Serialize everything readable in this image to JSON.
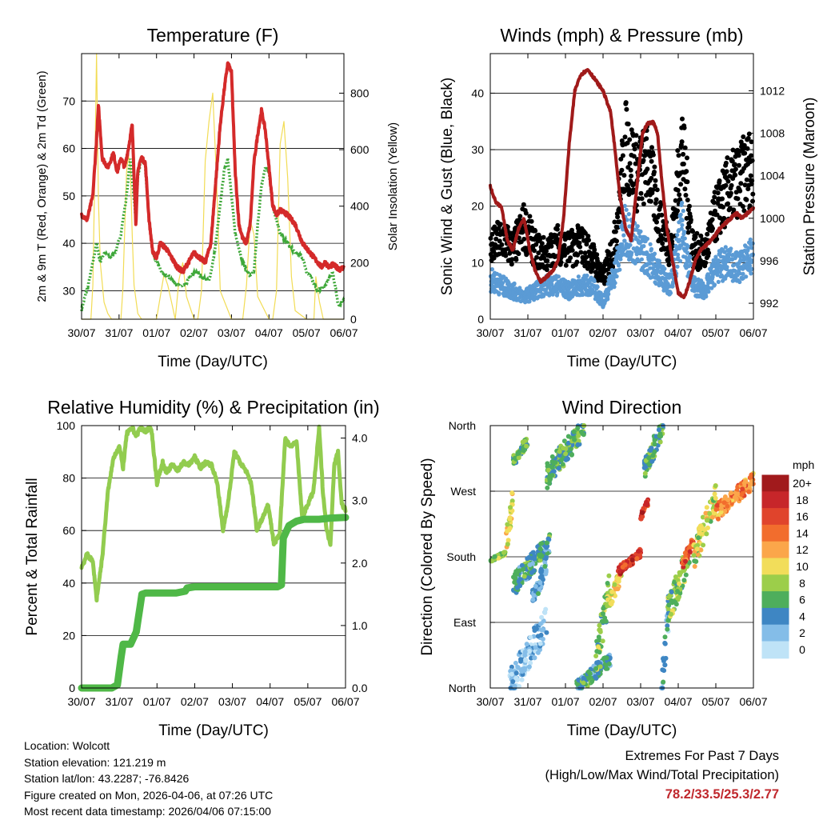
{
  "chart_data": [
    {
      "type": "line",
      "title": "Temperature (F)",
      "xlabel": "Time (Day/UTC)",
      "ylabel": "2m & 9m T (Red, Orange) & 2m Td (Green)",
      "ylabel_right": "Solar Insolation (Yellow)",
      "x_ticks": [
        "30/07",
        "31/07",
        "01/07",
        "02/07",
        "03/07",
        "04/07",
        "05/07",
        "06/07"
      ],
      "xlim": [
        0,
        7
      ],
      "ylim": [
        24,
        80
      ],
      "y_ticks": [
        30,
        40,
        50,
        60,
        70
      ],
      "ylim_right": [
        0,
        940
      ],
      "y_ticks_right": [
        0,
        200,
        400,
        600,
        800
      ],
      "series": [
        {
          "name": "2m T",
          "color": "#d42a2a",
          "axis": "left",
          "x": [
            0,
            0.15,
            0.3,
            0.4,
            0.45,
            0.55,
            0.7,
            0.85,
            0.95,
            1.05,
            1.15,
            1.25,
            1.35,
            1.45,
            1.5,
            1.55,
            1.6,
            1.7,
            1.8,
            1.9,
            2.0,
            2.1,
            2.25,
            2.4,
            2.55,
            2.7,
            2.85,
            3.0,
            3.15,
            3.3,
            3.45,
            3.5,
            3.6,
            3.7,
            3.8,
            3.9,
            4.0,
            4.1,
            4.2,
            4.3,
            4.4,
            4.5,
            4.6,
            4.7,
            4.8,
            4.9,
            5.0,
            5.1,
            5.2,
            5.3,
            5.5,
            5.7,
            5.9,
            6.0,
            6.1,
            6.2,
            6.3,
            6.4,
            6.5,
            6.6,
            6.7,
            6.8,
            6.9,
            7.0
          ],
          "y": [
            46,
            45,
            50,
            62,
            69,
            58,
            56,
            59,
            55,
            58,
            56,
            60,
            65,
            44,
            55,
            57,
            58,
            57,
            45,
            38,
            37,
            40,
            39,
            37,
            35,
            34,
            36,
            38,
            37,
            36,
            40,
            45,
            55,
            65,
            72,
            78,
            76,
            55,
            44,
            41,
            40,
            44,
            57,
            63,
            68,
            64,
            56,
            48,
            46,
            47,
            46,
            44,
            40,
            39,
            38,
            37,
            36,
            35,
            36,
            35,
            35.5,
            35,
            34.5,
            35
          ]
        },
        {
          "name": "2m Td",
          "color": "#3fa83a",
          "axis": "left",
          "x": [
            0,
            0.2,
            0.4,
            0.5,
            0.6,
            0.75,
            0.9,
            1.05,
            1.2,
            1.3,
            1.45,
            1.5,
            1.6,
            1.7,
            1.8,
            1.9,
            2.0,
            2.15,
            2.3,
            2.45,
            2.6,
            2.75,
            2.9,
            3.05,
            3.2,
            3.4,
            3.55,
            3.7,
            3.8,
            3.9,
            4.0,
            4.1,
            4.3,
            4.5,
            4.6,
            4.7,
            4.8,
            4.9,
            5.0,
            5.1,
            5.3,
            5.5,
            5.7,
            5.9,
            6.0,
            6.1,
            6.3,
            6.5,
            6.7,
            6.85,
            7.0
          ],
          "y": [
            26,
            32,
            40,
            36,
            38,
            37,
            38,
            42,
            50,
            58,
            45,
            54,
            58,
            56,
            45,
            38,
            36,
            34,
            33,
            32,
            31,
            31,
            33,
            34,
            33,
            32,
            38,
            48,
            55,
            58,
            50,
            42,
            36,
            33,
            34,
            44,
            52,
            56,
            55,
            48,
            42,
            40,
            38,
            37,
            34,
            33,
            30,
            31,
            34,
            27,
            28
          ]
        },
        {
          "name": "Solar Insolation",
          "color": "#f2dc55",
          "axis": "right",
          "x": [
            0.0,
            0.25,
            0.3,
            0.35,
            0.4,
            0.45,
            0.5,
            0.6,
            0.7,
            0.8,
            0.9,
            1.05,
            1.1,
            1.2,
            1.25,
            1.3,
            1.35,
            1.4,
            1.5,
            1.6,
            1.7,
            1.8,
            2.0,
            2.1,
            2.2,
            2.3,
            2.4,
            2.5,
            2.6,
            2.7,
            2.8,
            3.0,
            3.1,
            3.2,
            3.3,
            3.4,
            3.5,
            3.6,
            3.7,
            4.0,
            4.2,
            4.3,
            4.4,
            4.5,
            4.6,
            4.7,
            5.0,
            5.1,
            5.2,
            5.3,
            5.4,
            5.5,
            5.6,
            5.7,
            6.0,
            6.2,
            6.25,
            6.3,
            6.35,
            6.4,
            6.45,
            7.0
          ],
          "y": [
            0,
            0,
            120,
            500,
            940,
            420,
            200,
            60,
            20,
            0,
            0,
            0,
            100,
            520,
            580,
            540,
            300,
            120,
            20,
            0,
            0,
            0,
            0,
            80,
            160,
            120,
            60,
            0,
            140,
            200,
            80,
            0,
            0,
            100,
            560,
            700,
            800,
            500,
            100,
            0,
            0,
            0,
            120,
            350,
            300,
            80,
            0,
            0,
            100,
            620,
            700,
            500,
            150,
            30,
            0,
            0,
            150,
            100,
            60,
            30,
            0,
            0
          ]
        }
      ]
    },
    {
      "type": "line",
      "title": "Winds (mph) & Pressure (mb)",
      "xlabel": "Time (Day/UTC)",
      "ylabel": "Sonic Wind & Gust (Blue, Black)",
      "ylabel_right": "Station Pressure (Maroon)",
      "x_ticks": [
        "30/07",
        "31/07",
        "01/07",
        "02/07",
        "03/07",
        "04/07",
        "05/07",
        "06/07"
      ],
      "xlim": [
        0,
        7
      ],
      "ylim": [
        0,
        47
      ],
      "y_ticks": [
        0,
        10,
        20,
        30,
        40
      ],
      "ylim_right": [
        990.5,
        1015.5
      ],
      "y_ticks_right": [
        992,
        996,
        1000,
        1004,
        1008,
        1012
      ],
      "series": [
        {
          "name": "Station Pressure",
          "color": "#a01a1a",
          "axis": "right",
          "x": [
            0,
            0.15,
            0.3,
            0.45,
            0.6,
            0.75,
            0.9,
            1.05,
            1.2,
            1.35,
            1.5,
            1.65,
            1.8,
            1.95,
            2.1,
            2.25,
            2.4,
            2.6,
            2.8,
            3.0,
            3.2,
            3.3,
            3.45,
            3.6,
            3.75,
            3.9,
            4.05,
            4.2,
            4.35,
            4.45,
            4.55,
            4.7,
            4.85,
            5.0,
            5.15,
            5.3,
            5.45,
            5.6,
            5.75,
            5.9,
            6.0,
            6.1,
            6.25,
            6.4,
            6.55,
            6.7,
            6.85,
            7.0
          ],
          "y": [
            1003,
            1001.5,
            1001,
            998,
            997,
            999,
            1000,
            997,
            995,
            994,
            994.5,
            995,
            996,
            1000,
            1007,
            1012,
            1013.5,
            1014,
            1013,
            1012,
            1010,
            1007,
            1002,
            999,
            998,
            1003,
            1008,
            1009,
            1009,
            1008,
            1004,
            999,
            996,
            993,
            992.5,
            994,
            996,
            997,
            997.5,
            998,
            998.5,
            999,
            999.5,
            1000,
            1000.5,
            1000,
            1000.5,
            1001
          ]
        },
        {
          "name": "Sonic Wind",
          "color": "#5b9bd5",
          "axis": "left",
          "x": [
            0,
            0.3,
            0.6,
            0.9,
            1.2,
            1.5,
            1.8,
            2.1,
            2.4,
            2.7,
            3.0,
            3.3,
            3.6,
            3.9,
            4.2,
            4.5,
            4.8,
            5.1,
            5.4,
            5.7,
            6.0,
            6.3,
            6.6,
            6.9
          ],
          "y": [
            7,
            6,
            5,
            4,
            5,
            6,
            6,
            5,
            6,
            6,
            3,
            8,
            16,
            13,
            11,
            8,
            6,
            16,
            6,
            5,
            9,
            10,
            9,
            11
          ]
        },
        {
          "name": "Gust",
          "color": "#000000",
          "axis": "left",
          "x": [
            0,
            0.3,
            0.6,
            0.9,
            1.2,
            1.5,
            1.8,
            2.1,
            2.4,
            2.7,
            3.0,
            3.3,
            3.6,
            3.9,
            4.2,
            4.5,
            4.8,
            5.1,
            5.4,
            5.7,
            6.0,
            6.3,
            6.6,
            6.9
          ],
          "y": [
            12,
            14,
            12,
            16,
            12,
            11,
            13,
            12,
            13,
            11,
            7,
            13,
            30,
            25,
            27,
            17,
            12,
            30,
            12,
            11,
            18,
            22,
            24,
            26
          ]
        }
      ]
    },
    {
      "type": "line",
      "title": "Relative Humidity (%) & Precipitation (in)",
      "xlabel": "Time (Day/UTC)",
      "ylabel": "Percent & Total Rainfall",
      "x_ticks": [
        "30/07",
        "31/07",
        "01/07",
        "02/07",
        "03/07",
        "04/07",
        "05/07",
        "06/07"
      ],
      "xlim": [
        0,
        7
      ],
      "ylim": [
        0,
        100
      ],
      "y_ticks": [
        0,
        20,
        40,
        60,
        80,
        100
      ],
      "ylim_right": [
        0,
        4.2
      ],
      "y_ticks_right": [
        "0.0",
        "1.0",
        "2.0",
        "3.0",
        "4.0"
      ],
      "series": [
        {
          "name": "Relative Humidity",
          "color": "#92cc4f",
          "axis": "left",
          "x": [
            0,
            0.15,
            0.3,
            0.4,
            0.55,
            0.7,
            0.85,
            1.0,
            1.1,
            1.2,
            1.35,
            1.45,
            1.55,
            1.7,
            1.85,
            2.0,
            2.15,
            2.25,
            2.4,
            2.55,
            2.7,
            2.85,
            3.0,
            3.15,
            3.3,
            3.45,
            3.6,
            3.75,
            3.9,
            4.05,
            4.2,
            4.35,
            4.5,
            4.65,
            4.8,
            4.95,
            5.1,
            5.25,
            5.4,
            5.55,
            5.7,
            5.85,
            6.0,
            6.15,
            6.3,
            6.4,
            6.5,
            6.6,
            6.7,
            6.8,
            6.9,
            7.0
          ],
          "y": [
            46,
            51,
            48,
            34,
            50,
            75,
            88,
            92,
            84,
            97,
            99,
            96,
            99,
            98,
            99,
            78,
            86,
            82,
            85,
            83,
            86,
            85,
            88,
            84,
            86,
            85,
            78,
            60,
            72,
            90,
            86,
            83,
            78,
            60,
            65,
            70,
            55,
            58,
            95,
            92,
            94,
            65,
            70,
            75,
            99,
            75,
            60,
            55,
            85,
            90,
            70,
            68
          ]
        },
        {
          "name": "Total Rainfall",
          "color": "#4fb847",
          "axis": "right",
          "x": [
            0,
            0.8,
            0.95,
            1.05,
            1.1,
            1.3,
            1.45,
            1.5,
            1.55,
            1.6,
            1.7,
            2.0,
            2.5,
            2.75,
            2.8,
            3.0,
            3.5,
            4.0,
            4.5,
            5.0,
            5.2,
            5.3,
            5.35,
            5.5,
            5.7,
            5.9,
            6.0,
            6.3,
            6.6,
            7.0
          ],
          "y": [
            0,
            0,
            0.05,
            0.5,
            0.7,
            0.7,
            0.9,
            1.1,
            1.3,
            1.5,
            1.52,
            1.52,
            1.52,
            1.55,
            1.6,
            1.62,
            1.62,
            1.62,
            1.62,
            1.62,
            1.62,
            1.65,
            2.4,
            2.6,
            2.67,
            2.7,
            2.7,
            2.7,
            2.72,
            2.73
          ]
        }
      ]
    },
    {
      "type": "scatter",
      "title": "Wind Direction",
      "xlabel": "Time (Day/UTC)",
      "ylabel": "Direction (Colored By Speed)",
      "x_ticks": [
        "30/07",
        "31/07",
        "01/07",
        "02/07",
        "03/07",
        "04/07",
        "05/07",
        "06/07"
      ],
      "xlim": [
        0,
        7
      ],
      "ylim": [
        0,
        360
      ],
      "y_ticks": [
        "North",
        "East",
        "South",
        "West",
        "North"
      ],
      "legend_title": "mph",
      "legend_labels": [
        "20+",
        "18",
        "16",
        "14",
        "12",
        "10",
        "8",
        "6",
        "4",
        "2",
        "0"
      ],
      "legend_colors": [
        "#a11a1c",
        "#c7262a",
        "#e0442c",
        "#f26d2d",
        "#fba64a",
        "#f2dd5a",
        "#9cce4a",
        "#4eae5c",
        "#3e86c3",
        "#84bde8",
        "#bfe3f7"
      ],
      "clusters": [
        {
          "x0": 0.0,
          "x1": 0.4,
          "d0": 175,
          "d1": 185,
          "speed": 7
        },
        {
          "x0": 0.4,
          "x1": 0.6,
          "d0": 190,
          "d1": 260,
          "speed": 9
        },
        {
          "x0": 0.6,
          "x1": 1.6,
          "d0": 140,
          "d1": 200,
          "speed": 5
        },
        {
          "x0": 0.6,
          "x1": 1.0,
          "d0": 310,
          "d1": 340,
          "speed": 6
        },
        {
          "x0": 1.1,
          "x1": 1.5,
          "d0": 120,
          "d1": 170,
          "speed": 3
        },
        {
          "x0": 1.5,
          "x1": 2.5,
          "d0": 290,
          "d1": 360,
          "speed": 6
        },
        {
          "x0": 0.5,
          "x1": 1.5,
          "d0": 0,
          "d1": 90,
          "speed": 2
        },
        {
          "x0": 2.3,
          "x1": 3.2,
          "d0": 0,
          "d1": 40,
          "speed": 5
        },
        {
          "x0": 2.8,
          "x1": 3.2,
          "d0": 40,
          "d1": 140,
          "speed": 7
        },
        {
          "x0": 3.2,
          "x1": 3.5,
          "d0": 120,
          "d1": 160,
          "speed": 10
        },
        {
          "x0": 3.4,
          "x1": 4.0,
          "d0": 160,
          "d1": 185,
          "speed": 17
        },
        {
          "x0": 4.0,
          "x1": 4.2,
          "d0": 235,
          "d1": 255,
          "speed": 17
        },
        {
          "x0": 4.1,
          "x1": 4.6,
          "d0": 300,
          "d1": 360,
          "speed": 6
        },
        {
          "x0": 4.55,
          "x1": 4.75,
          "d0": 0,
          "d1": 110,
          "speed": 3
        },
        {
          "x0": 4.7,
          "x1": 5.3,
          "d0": 100,
          "d1": 185,
          "speed": 7
        },
        {
          "x0": 5.1,
          "x1": 5.4,
          "d0": 170,
          "d1": 200,
          "speed": 15
        },
        {
          "x0": 5.4,
          "x1": 6.0,
          "d0": 180,
          "d1": 260,
          "speed": 9
        },
        {
          "x0": 6.0,
          "x1": 7.0,
          "d0": 240,
          "d1": 285,
          "speed": 13
        }
      ]
    }
  ],
  "info": {
    "location": "Location: Wolcott",
    "elevation": "Station elevation: 121.219 m",
    "latlon": "Station lat/lon: 43.2287; -76.8426",
    "created": "Figure created on Mon, 2026-04-06, at 07:26 UTC",
    "timestamp": "Most recent data timestamp: 2026/04/06 07:15:00"
  },
  "extremes": {
    "line1": "Extremes For Past 7 Days",
    "line2": "(High/Low/Max Wind/Total Precipitation)",
    "values": "78.2/33.5/25.3/2.77"
  }
}
